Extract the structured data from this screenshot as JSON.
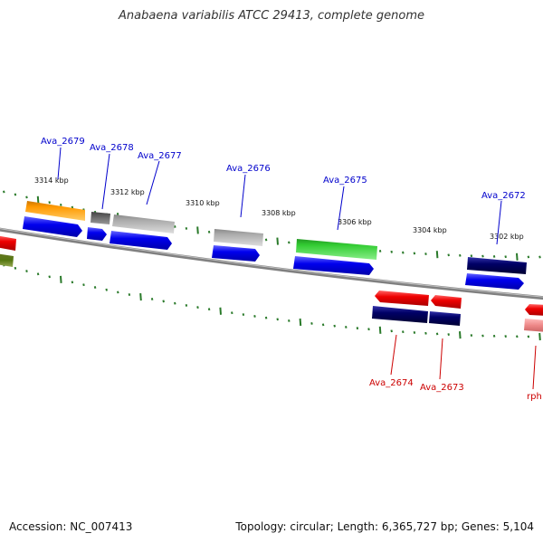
{
  "title": "Anabaena variabilis ATCC 29413, complete genome",
  "footer": {
    "accession": "Accession: NC_007413",
    "summary": "Topology: circular; Length: 6,365,727 bp; Genes: 5,104"
  },
  "ticks": [
    "3314 kbp",
    "3312 kbp",
    "3310 kbp",
    "3308 kbp",
    "3306 kbp",
    "3304 kbp",
    "3302 kbp"
  ],
  "genes_forward": [
    {
      "name": "Ava_2679",
      "color": "#0000cc"
    },
    {
      "name": "Ava_2678",
      "color": "#0000cc"
    },
    {
      "name": "Ava_2677",
      "color": "#0000cc"
    },
    {
      "name": "Ava_2676",
      "color": "#0000cc"
    },
    {
      "name": "Ava_2675",
      "color": "#0000cc"
    },
    {
      "name": "Ava_2672",
      "color": "#0000cc"
    }
  ],
  "genes_reverse": [
    {
      "name": "Ava_2674",
      "color": "#cc0000"
    },
    {
      "name": "Ava_2673",
      "color": "#cc0000"
    },
    {
      "name": "rph",
      "color": "#cc0000"
    }
  ],
  "colors": {
    "backbone": "#808080",
    "forward_cds": "#0000ee",
    "reverse_cds": "#000066",
    "tick": "#2a7a2a",
    "orange_feature": "#ff9900",
    "green_feature": "#33cc33",
    "gray_feature": "#aaaaaa",
    "red_feature": "#ee0000",
    "pink_feature": "#ee8888",
    "navy_feature": "#000066"
  }
}
